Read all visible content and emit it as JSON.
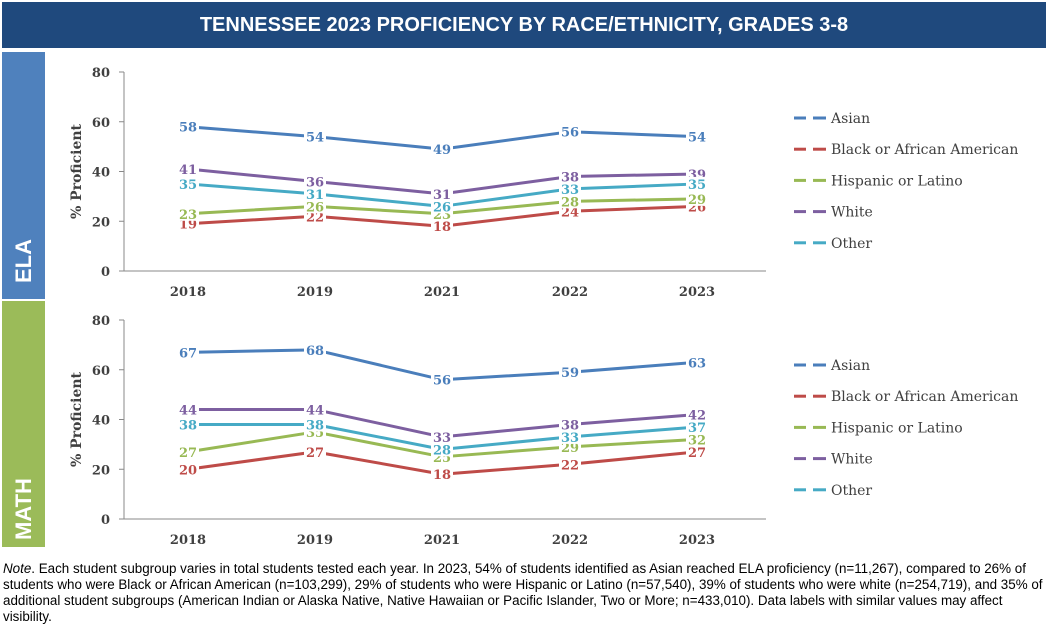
{
  "title": "TENNESSEE 2023 PROFICIENCY BY RACE/ETHNICITY, GRADES 3-8",
  "colors": {
    "title_bg": "#1f497d",
    "ela_tab": "#4f81bd",
    "math_tab": "#9bbb59",
    "asian": "#4a7ebb",
    "black": "#be4b48",
    "hispanic": "#98b954",
    "white": "#7d5fa0",
    "other": "#46aac5"
  },
  "chart_data": [
    {
      "type": "line",
      "panel": "ELA",
      "categories": [
        "2018",
        "2019",
        "2021",
        "2022",
        "2023"
      ],
      "ylabel": "% Proficient",
      "ylim": [
        0,
        80
      ],
      "yticks": [
        "0",
        "20",
        "40",
        "60",
        "80"
      ],
      "legend": "right",
      "grid": false,
      "series": [
        {
          "name": "Asian",
          "color": "#4a7ebb",
          "values": [
            58,
            54,
            49,
            56,
            54
          ]
        },
        {
          "name": "Black or African American",
          "color": "#be4b48",
          "values": [
            19,
            22,
            18,
            24,
            26
          ]
        },
        {
          "name": "Hispanic or Latino",
          "color": "#98b954",
          "values": [
            23,
            26,
            23,
            28,
            29
          ]
        },
        {
          "name": "White",
          "color": "#7d5fa0",
          "values": [
            41,
            36,
            31,
            38,
            39
          ]
        },
        {
          "name": "Other",
          "color": "#46aac5",
          "values": [
            35,
            31,
            26,
            33,
            35
          ]
        }
      ]
    },
    {
      "type": "line",
      "panel": "MATH",
      "categories": [
        "2018",
        "2019",
        "2021",
        "2022",
        "2023"
      ],
      "ylabel": "% Proficient",
      "ylim": [
        0,
        80
      ],
      "yticks": [
        "0",
        "20",
        "40",
        "60",
        "80"
      ],
      "legend": "right",
      "grid": false,
      "series": [
        {
          "name": "Asian",
          "color": "#4a7ebb",
          "values": [
            67,
            68,
            56,
            59,
            63
          ]
        },
        {
          "name": "Black or African American",
          "color": "#be4b48",
          "values": [
            20,
            27,
            18,
            22,
            27
          ]
        },
        {
          "name": "Hispanic or Latino",
          "color": "#98b954",
          "values": [
            27,
            35,
            25,
            29,
            32
          ]
        },
        {
          "name": "White",
          "color": "#7d5fa0",
          "values": [
            44,
            44,
            33,
            38,
            42
          ]
        },
        {
          "name": "Other",
          "color": "#46aac5",
          "values": [
            38,
            38,
            28,
            33,
            37
          ]
        }
      ]
    }
  ],
  "note": {
    "label": "Note",
    "text": ". Each student subgroup varies in total students tested each year. In 2023, 54% of students identified as Asian reached ELA proficiency (n=11,267), compared to 26% of students who were Black or African American (n=103,299), 29% of students who were Hispanic or Latino (n=57,540), 39% of students who were white (n=254,719), and 35% of additional student subgroups (American Indian or Alaska Native, Native Hawaiian or Pacific Islander, Two or More; n=433,010). Data labels with similar values may affect visibility."
  }
}
